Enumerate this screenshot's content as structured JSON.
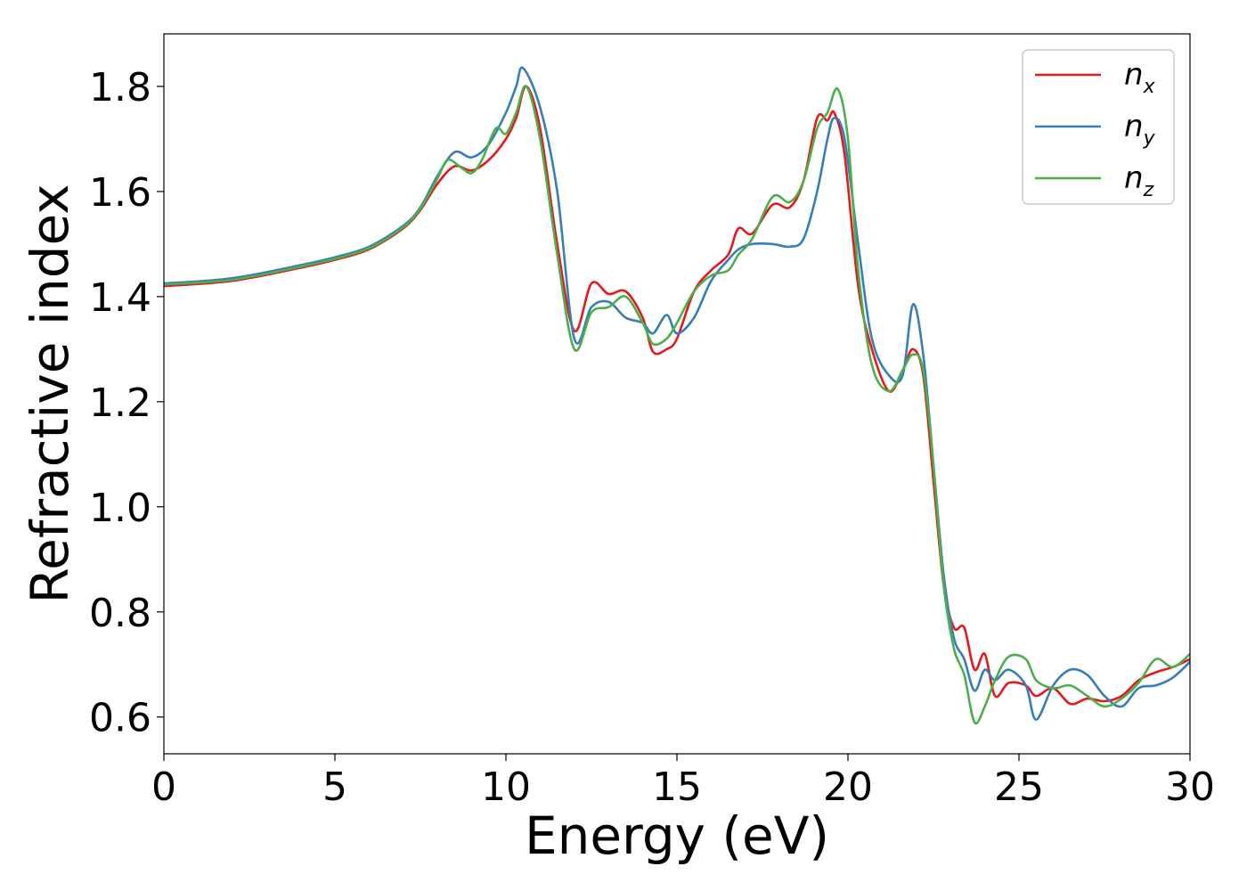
{
  "chart_data": {
    "type": "line",
    "title": "",
    "xlabel": "Energy (eV)",
    "ylabel": "Refractive index",
    "xlim": [
      0,
      30
    ],
    "ylim": [
      0.53,
      1.9
    ],
    "xticks": [
      0,
      5,
      10,
      15,
      20,
      25,
      30
    ],
    "xtick_labels": [
      "0",
      "5",
      "10",
      "15",
      "20",
      "25",
      "30"
    ],
    "yticks": [
      0.6,
      0.8,
      1.0,
      1.2,
      1.4,
      1.6,
      1.8
    ],
    "ytick_labels": [
      "0.6",
      "0.8",
      "1.0",
      "1.2",
      "1.4",
      "1.6",
      "1.8"
    ],
    "grid": false,
    "legend_position": "top-right",
    "series": [
      {
        "name": "n",
        "subscript": "x",
        "color": "#e41a1c",
        "x": [
          0,
          2,
          4,
          5,
          6,
          7,
          7.5,
          8,
          8.5,
          9,
          9.5,
          10,
          10.3,
          10.6,
          11,
          11.5,
          12,
          12.5,
          13,
          13.5,
          14,
          14.3,
          14.7,
          15,
          15.5,
          16,
          16.5,
          16.8,
          17.2,
          17.8,
          18.3,
          18.7,
          19.1,
          19.4,
          19.6,
          19.9,
          20.3,
          20.7,
          21.2,
          21.6,
          21.9,
          22.2,
          22.5,
          22.8,
          23.1,
          23.4,
          23.7,
          24,
          24.3,
          24.7,
          25.2,
          25.5,
          26,
          26.5,
          27,
          27.5,
          28,
          28.5,
          29,
          29.5,
          30
        ],
        "y": [
          1.42,
          1.43,
          1.455,
          1.47,
          1.49,
          1.53,
          1.565,
          1.615,
          1.648,
          1.64,
          1.66,
          1.7,
          1.74,
          1.8,
          1.72,
          1.5,
          1.335,
          1.425,
          1.405,
          1.41,
          1.36,
          1.295,
          1.3,
          1.32,
          1.41,
          1.45,
          1.48,
          1.53,
          1.52,
          1.575,
          1.57,
          1.62,
          1.74,
          1.735,
          1.75,
          1.67,
          1.42,
          1.3,
          1.22,
          1.26,
          1.3,
          1.25,
          1.05,
          0.85,
          0.77,
          0.77,
          0.69,
          0.72,
          0.64,
          0.665,
          0.66,
          0.64,
          0.655,
          0.625,
          0.635,
          0.63,
          0.64,
          0.67,
          0.685,
          0.695,
          0.71
        ]
      },
      {
        "name": "n",
        "subscript": "y",
        "color": "#377eb8",
        "x": [
          0,
          2,
          4,
          5,
          6,
          7,
          7.5,
          8,
          8.5,
          9,
          9.5,
          10,
          10.3,
          10.5,
          11,
          11.5,
          12,
          12.5,
          13,
          13.5,
          14,
          14.3,
          14.7,
          15,
          15.5,
          16,
          16.5,
          16.8,
          17.2,
          17.8,
          18.3,
          18.7,
          19.1,
          19.4,
          19.6,
          19.9,
          20.3,
          20.7,
          21.2,
          21.6,
          21.9,
          22.2,
          22.5,
          22.8,
          23.1,
          23.4,
          23.7,
          24,
          24.3,
          24.7,
          25.2,
          25.5,
          26,
          26.5,
          27,
          27.5,
          28,
          28.5,
          29,
          29.5,
          30
        ],
        "y": [
          1.425,
          1.435,
          1.46,
          1.475,
          1.495,
          1.535,
          1.57,
          1.63,
          1.675,
          1.665,
          1.69,
          1.75,
          1.8,
          1.835,
          1.76,
          1.6,
          1.32,
          1.38,
          1.39,
          1.36,
          1.35,
          1.33,
          1.365,
          1.33,
          1.36,
          1.43,
          1.47,
          1.49,
          1.5,
          1.5,
          1.495,
          1.51,
          1.6,
          1.7,
          1.74,
          1.7,
          1.5,
          1.32,
          1.25,
          1.25,
          1.385,
          1.29,
          1.08,
          0.87,
          0.75,
          0.71,
          0.65,
          0.69,
          0.67,
          0.69,
          0.66,
          0.595,
          0.66,
          0.69,
          0.68,
          0.64,
          0.62,
          0.655,
          0.66,
          0.675,
          0.705
        ]
      },
      {
        "name": "n",
        "subscript": "z",
        "color": "#4daf4a",
        "x": [
          0,
          2,
          4,
          5,
          6,
          7,
          7.5,
          8,
          8.3,
          8.7,
          9,
          9.3,
          9.7,
          10,
          10.3,
          10.6,
          11,
          11.5,
          12,
          12.5,
          13,
          13.5,
          14,
          14.3,
          14.7,
          15,
          15.5,
          16,
          16.5,
          16.8,
          17.2,
          17.8,
          18.3,
          18.7,
          19.1,
          19.4,
          19.7,
          20,
          20.3,
          20.7,
          21.2,
          21.6,
          21.9,
          22.2,
          22.5,
          22.8,
          23.1,
          23.4,
          23.7,
          24,
          24.3,
          24.7,
          25.2,
          25.5,
          26,
          26.5,
          27,
          27.5,
          28,
          28.5,
          29,
          29.5,
          30
        ],
        "y": [
          1.423,
          1.432,
          1.457,
          1.472,
          1.492,
          1.532,
          1.568,
          1.625,
          1.66,
          1.645,
          1.635,
          1.66,
          1.72,
          1.71,
          1.75,
          1.8,
          1.7,
          1.48,
          1.3,
          1.37,
          1.38,
          1.4,
          1.35,
          1.31,
          1.32,
          1.35,
          1.41,
          1.44,
          1.45,
          1.48,
          1.51,
          1.59,
          1.58,
          1.62,
          1.72,
          1.75,
          1.795,
          1.7,
          1.45,
          1.27,
          1.22,
          1.26,
          1.29,
          1.26,
          1.08,
          0.85,
          0.73,
          0.68,
          0.59,
          0.62,
          0.67,
          0.715,
          0.71,
          0.67,
          0.655,
          0.66,
          0.64,
          0.62,
          0.635,
          0.665,
          0.71,
          0.695,
          0.72
        ]
      }
    ]
  }
}
